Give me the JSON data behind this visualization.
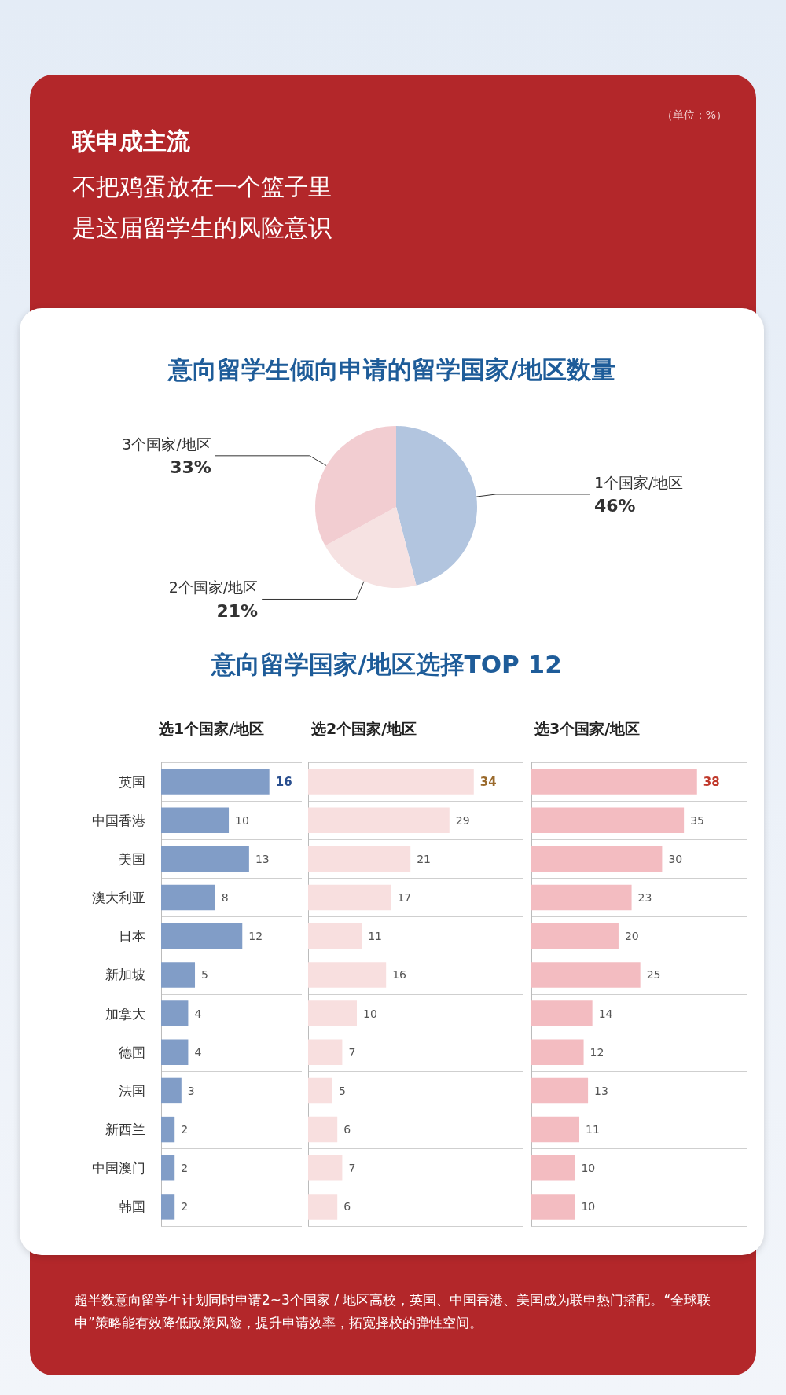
{
  "chart_data": [
    {
      "type": "pie",
      "title": "意向留学生倾向申请的留学国家/地区数量",
      "categories": [
        "1个国家/地区",
        "2个国家/地区",
        "3个国家/地区"
      ],
      "values": [
        46,
        21,
        33
      ],
      "value_labels": [
        "46%",
        "21%",
        "33%"
      ],
      "colors": [
        "#b2c5df",
        "#f6e2e2",
        "#f2cdd1"
      ],
      "legend": false,
      "annotations": [
        "联申成主流",
        "不把鸡蛋放在一个篮子里",
        "是这届留学生的风险意识",
        "（单位：%）"
      ]
    },
    {
      "type": "bar",
      "orientation": "horizontal",
      "title": "意向留学国家/地区选择TOP 12",
      "subtitle": "选1个国家/地区",
      "categories": [
        "英国",
        "中国香港",
        "美国",
        "澳大利亚",
        "日本",
        "新加坡",
        "加拿大",
        "德国",
        "法国",
        "新西兰",
        "中国澳门",
        "韩国"
      ],
      "values": [
        16,
        10,
        13,
        8,
        12,
        5,
        4,
        4,
        3,
        2,
        2,
        2
      ],
      "color": "#819dc7",
      "data_labels": true,
      "grid": "y",
      "legend": false
    },
    {
      "type": "bar",
      "orientation": "horizontal",
      "subtitle": "选2个国家/地区",
      "categories": [
        null,
        null,
        null,
        null,
        null,
        null,
        null,
        null,
        null,
        null,
        null,
        null
      ],
      "values": [
        34,
        29,
        21,
        17,
        11,
        16,
        10,
        7,
        5,
        6,
        7,
        6
      ],
      "color": "#f8dfdf",
      "data_labels": true,
      "grid": "y",
      "legend": false,
      "tick_labels": false
    },
    {
      "type": "bar",
      "orientation": "horizontal",
      "subtitle": "选3个国家/地区",
      "categories": [
        null,
        null,
        null,
        null,
        null,
        null,
        null,
        null,
        null,
        null,
        null,
        null
      ],
      "values": [
        38,
        35,
        30,
        23,
        20,
        25,
        14,
        12,
        13,
        11,
        10,
        10
      ],
      "color": "#f3bcc1",
      "data_labels": true,
      "grid": "y",
      "legend": false,
      "tick_labels": false,
      "annotations": [
        "超半数意向留学生计划同时申请2~3个国家 / 地区高校，英国、中国香港、美国成为联申热门搭配。“全球联申”策略能有效降低政策风险，提升申请效率，拓宽择校的弹性空间。"
      ]
    }
  ]
}
